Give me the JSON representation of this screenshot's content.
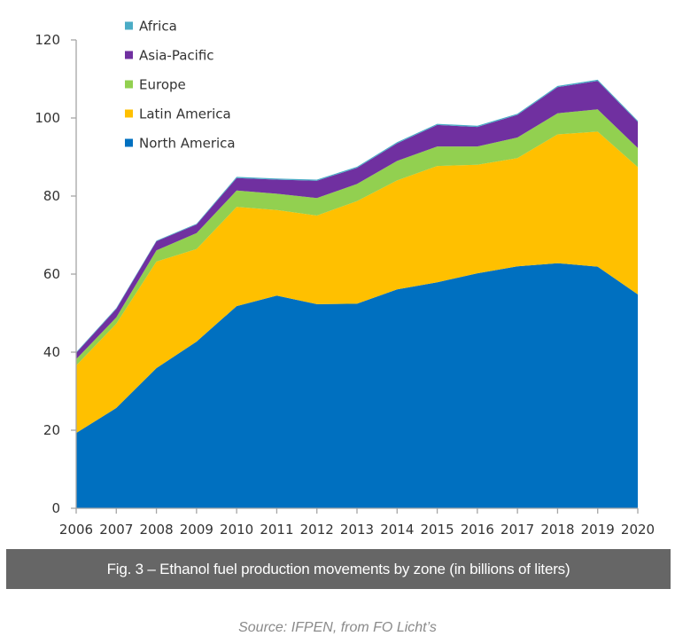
{
  "chart_data": {
    "type": "area",
    "stacked": true,
    "title": "Fig. 3 – Ethanol fuel production movements by zone (in billions of liters)",
    "xlabel": "",
    "ylabel": "",
    "x": [
      "2006",
      "2007",
      "2008",
      "2009",
      "2010",
      "2011",
      "2012",
      "2013",
      "2014",
      "2015",
      "2016",
      "2017",
      "2018",
      "2019",
      "2020"
    ],
    "ylim": [
      0,
      120
    ],
    "yticks": [
      "0",
      "20",
      "40",
      "60",
      "80",
      "100",
      "120"
    ],
    "grid": false,
    "legend_position": "top-left",
    "series": [
      {
        "name": "North America",
        "color": "#0070C0",
        "values": [
          19.3,
          25.7,
          35.9,
          42.7,
          51.8,
          54.5,
          52.3,
          52.4,
          56.1,
          57.9,
          60.2,
          62.0,
          62.8,
          61.9,
          54.8
        ]
      },
      {
        "name": "Latin America",
        "color": "#FFC000",
        "values": [
          17.3,
          21.6,
          27.3,
          23.7,
          25.4,
          21.9,
          22.7,
          26.3,
          27.9,
          29.8,
          27.8,
          27.7,
          33.0,
          34.6,
          32.6
        ]
      },
      {
        "name": "Europe",
        "color": "#92D050",
        "values": [
          1.6,
          1.6,
          2.9,
          4.1,
          4.2,
          4.2,
          4.5,
          4.4,
          5.0,
          5.0,
          4.7,
          5.3,
          5.4,
          5.7,
          4.9
        ]
      },
      {
        "name": "Asia-Pacific",
        "color": "#7030A0",
        "values": [
          1.6,
          2.2,
          2.3,
          2.2,
          3.2,
          3.6,
          4.4,
          4.1,
          4.5,
          5.5,
          5.0,
          5.8,
          6.7,
          7.3,
          6.7
        ]
      },
      {
        "name": "Africa",
        "color": "#4BACC6",
        "values": [
          0.2,
          0.2,
          0.2,
          0.2,
          0.3,
          0.3,
          0.3,
          0.3,
          0.3,
          0.3,
          0.3,
          0.3,
          0.3,
          0.3,
          0.3
        ]
      }
    ],
    "legend_order": [
      "Africa",
      "Asia-Pacific",
      "Europe",
      "Latin America",
      "North America"
    ]
  },
  "caption": "Fig. 3 – Ethanol fuel production movements by zone (in billions of liters)",
  "source": "Source: IFPEN, from FO Licht’s"
}
